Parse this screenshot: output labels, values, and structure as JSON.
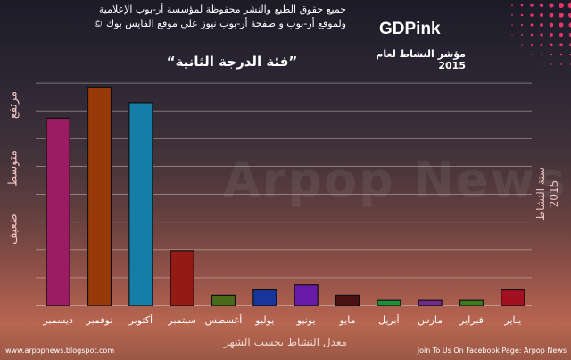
{
  "header": {
    "copyright_line1": "جميع حقوق الطبع والنشر محفوظة لمؤسسة أر-بوب الإعلامية",
    "copyright_line2": "ولموقع أر-بوب و صفحة أر-بوب نيوز على موقع الفايس بوك ©",
    "brand": "GDPink",
    "watermark": "Arpop News"
  },
  "side_label": {
    "line1": "سنة النشاط",
    "line2": "2015"
  },
  "footer": {
    "left": "www.arpopnews.blogspot.com",
    "right": "Join To Us On Facebook Page: Arpop News"
  },
  "chart_data": {
    "type": "bar",
    "title": "“فئة الدرجة الثانية”",
    "subtitle": "مؤشر النشاط لعام 2015",
    "xlabel": "معدل النشاط بحسب الشهر",
    "ylabel": "",
    "y_level_labels": [
      "ضعيف",
      "متوسط",
      "مرتفع"
    ],
    "categories": [
      "ديسمبر",
      "نوفمبر",
      "أكتوبر",
      "سبتمبر",
      "أغسطس",
      "يوليو",
      "يونيو",
      "مايو",
      "أبريل",
      "مارس",
      "فبراير",
      "يناير"
    ],
    "values": [
      7.2,
      8.4,
      7.8,
      2.1,
      0.4,
      0.6,
      0.8,
      0.4,
      0.2,
      0.2,
      0.2,
      0.6
    ],
    "colors": [
      "#9b1c63",
      "#983a08",
      "#157ea7",
      "#951a16",
      "#496b1a",
      "#17359a",
      "#6a1aa8",
      "#4a1214",
      "#1d8f3b",
      "#6d2a8a",
      "#3b7a1f",
      "#a3101f"
    ],
    "ylim": [
      0,
      9
    ],
    "grid": true,
    "legend": "none"
  }
}
